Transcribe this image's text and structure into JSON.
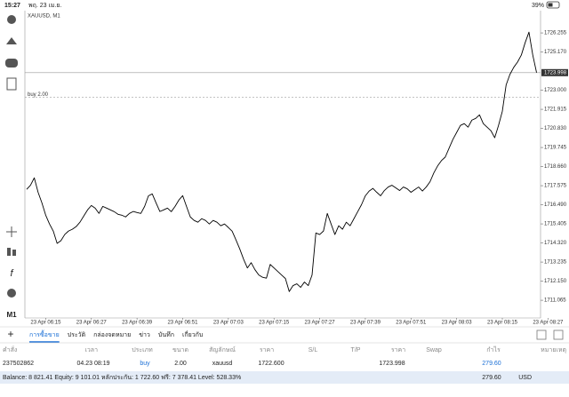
{
  "status_bar": {
    "time": "15:27",
    "date": "พฤ. 23 เม.ย.",
    "battery": "39%"
  },
  "chart_data": {
    "type": "line",
    "title": "XAUUSD, M1",
    "toolbar_period": "M1",
    "color": "#000000",
    "grid": false,
    "categories": [
      null,
      null,
      null,
      null,
      null,
      "23 Apr 06:15",
      null,
      null,
      null,
      null,
      null,
      null,
      null,
      null,
      null,
      null,
      null,
      "23 Apr 06:27",
      null,
      null,
      null,
      null,
      null,
      null,
      null,
      null,
      null,
      null,
      null,
      "23 Apr 06:39",
      null,
      null,
      null,
      null,
      null,
      null,
      null,
      null,
      null,
      null,
      null,
      "23 Apr 06:51",
      null,
      null,
      null,
      null,
      null,
      null,
      null,
      null,
      null,
      null,
      null,
      "23 Apr 07:03",
      null,
      null,
      null,
      null,
      null,
      null,
      null,
      null,
      null,
      null,
      null,
      "23 Apr 07:15",
      null,
      null,
      null,
      null,
      null,
      null,
      null,
      null,
      null,
      null,
      null,
      "23 Apr 07:27",
      null,
      null,
      null,
      null,
      null,
      null,
      null,
      null,
      null,
      null,
      null,
      "23 Apr 07:39",
      null,
      null,
      null,
      null,
      null,
      null,
      null,
      null,
      null,
      null,
      null,
      "23 Apr 07:51",
      null,
      null,
      null,
      null,
      null,
      null,
      null,
      null,
      null,
      null,
      null,
      "23 Apr 08:03",
      null,
      null,
      null,
      null,
      null,
      null,
      null,
      null,
      null,
      null,
      null,
      "23 Apr 08:15",
      null,
      null,
      null,
      null,
      null,
      null,
      null,
      null,
      null,
      null,
      null,
      "23 Apr 08:27"
    ],
    "values": [
      1717.37,
      1717.6,
      1718.02,
      1717.2,
      1716.6,
      1715.9,
      1715.4,
      1714.99,
      1714.3,
      1714.45,
      1714.8,
      1715.0,
      1715.1,
      1715.25,
      1715.5,
      1715.85,
      1716.2,
      1716.45,
      1716.3,
      1716.0,
      1716.4,
      1716.3,
      1716.2,
      1716.1,
      1715.95,
      1715.9,
      1715.8,
      1716.0,
      1716.11,
      1716.05,
      1716.0,
      1716.4,
      1717.0,
      1717.11,
      1716.6,
      1716.11,
      1716.2,
      1716.3,
      1716.1,
      1716.4,
      1716.76,
      1717.01,
      1716.4,
      1715.8,
      1715.6,
      1715.5,
      1715.7,
      1715.6,
      1715.4,
      1715.6,
      1715.5,
      1715.3,
      1715.4,
      1715.2,
      1714.99,
      1714.5,
      1713.98,
      1713.4,
      1712.9,
      1713.2,
      1712.8,
      1712.5,
      1712.37,
      1712.32,
      1713.1,
      1712.9,
      1712.7,
      1712.5,
      1712.3,
      1711.56,
      1711.9,
      1712.0,
      1711.8,
      1712.1,
      1711.9,
      1712.5,
      1714.89,
      1714.8,
      1715.0,
      1716.0,
      1715.4,
      1714.8,
      1715.3,
      1715.1,
      1715.5,
      1715.3,
      1715.7,
      1716.1,
      1716.5,
      1717.0,
      1717.27,
      1717.42,
      1717.2,
      1717.0,
      1717.3,
      1717.5,
      1717.6,
      1717.45,
      1717.3,
      1717.5,
      1717.4,
      1717.2,
      1717.35,
      1717.5,
      1717.27,
      1717.5,
      1717.8,
      1718.3,
      1718.7,
      1719.0,
      1719.2,
      1719.7,
      1720.2,
      1720.6,
      1721.0,
      1721.1,
      1720.9,
      1721.3,
      1721.4,
      1721.6,
      1721.1,
      1720.9,
      1720.7,
      1720.3,
      1721.0,
      1721.8,
      1723.3,
      1723.9,
      1724.3,
      1724.6,
      1725.0,
      1725.7,
      1726.3,
      1725.0,
      1724.0,
      null,
      null,
      null
    ],
    "ylim": [
      1710.06,
      1727.52
    ],
    "yticks": [
      1726.255,
      {
        "value": 1725.17,
        "label": "1725.170"
      },
      {
        "value": 1723,
        "label": "1723.000"
      },
      1721.915,
      {
        "value": 1720.83,
        "label": "1720.830"
      },
      1719.745,
      {
        "value": 1718.66,
        "label": "1718.660"
      },
      1717.575,
      {
        "value": 1716.49,
        "label": "1716.490"
      },
      1715.405,
      {
        "value": 1714.32,
        "label": "1714.320"
      },
      1713.235,
      {
        "value": 1712.15,
        "label": "1712.150"
      },
      1711.065
    ],
    "price_line": 1723.998,
    "order_line": {
      "value": 1722.6,
      "label": "buy 2.00"
    }
  },
  "tabs": [
    "การซื้อขาย",
    "ประวัติ",
    "กล่องจดหมาย",
    "ข่าว",
    "บันทึก",
    "เกี่ยวกับ"
  ],
  "table": {
    "header": [
      "คำสั่ง",
      "เวลา",
      "ประเภท",
      "ขนาด",
      "สัญลักษณ์",
      "ราคา",
      "S/L",
      "T/P",
      "ราคา",
      "Swap",
      "กำไร",
      "หมายเหตุ"
    ],
    "rows": [
      [
        "237502862",
        "04.23 08:19",
        "buy",
        "2.00",
        "xauusd",
        "1722.600",
        null,
        null,
        "1723.998",
        null,
        "279.60",
        null
      ]
    ]
  },
  "footer": {
    "summary": "Balance: 8 821.41 Equity: 9 101.01 หลักประกัน: 1 722.60 ฟรี: 7 378.41 Level: 528.33%",
    "profit": "279.60",
    "currency": "USD"
  }
}
